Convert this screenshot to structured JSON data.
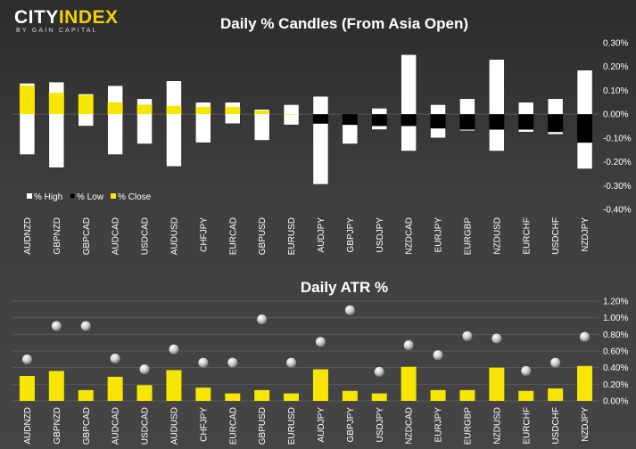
{
  "logo": {
    "main_prefix": "CITY",
    "main_accent": "INDEX",
    "sub": "BY GAIN CAPITAL"
  },
  "colors": {
    "high": "#ffffff",
    "low": "#000000",
    "close": "#f6e600",
    "atr_bar": "#f6e600",
    "gridline": "#5a5a5a",
    "text": "#ffffff"
  },
  "chart_data": [
    {
      "type": "bar",
      "title": "Daily % Candles (From Asia Open)",
      "categories": [
        "AUDNZD",
        "GBPNZD",
        "GBPCAD",
        "AUDCAD",
        "USDCAD",
        "AUDUSD",
        "CHFJPY",
        "EURCAD",
        "GBPUSD",
        "EURUSD",
        "AUDJPY",
        "GBPJPY",
        "USDJPY",
        "NZDCAD",
        "EURJPY",
        "EURGBP",
        "NZDUSD",
        "EURCHF",
        "USDCHF",
        "NZDJPY"
      ],
      "series": [
        {
          "name": "% High",
          "values": [
            0.13,
            0.135,
            0.085,
            0.12,
            0.065,
            0.14,
            0.05,
            0.05,
            0.02,
            0.04,
            0.075,
            0.0,
            0.025,
            0.25,
            0.04,
            0.065,
            0.23,
            0.05,
            0.065,
            0.185
          ]
        },
        {
          "name": "% Low",
          "values": [
            -0.17,
            -0.225,
            -0.05,
            -0.17,
            -0.125,
            -0.22,
            -0.12,
            -0.04,
            -0.11,
            -0.045,
            -0.295,
            -0.125,
            -0.065,
            -0.155,
            -0.1,
            -0.07,
            -0.155,
            -0.075,
            -0.085,
            -0.23
          ]
        },
        {
          "name": "% Close",
          "values": [
            0.12,
            0.09,
            0.08,
            0.05,
            0.04,
            0.035,
            0.03,
            0.03,
            0.015,
            0.0,
            -0.04,
            -0.045,
            -0.05,
            -0.05,
            -0.06,
            -0.065,
            -0.065,
            -0.065,
            -0.075,
            -0.12
          ]
        }
      ],
      "ylim": [
        -0.4,
        0.3
      ],
      "yticks": [
        "0.30%",
        "0.20%",
        "0.10%",
        "0.00%",
        "-0.10%",
        "-0.20%",
        "-0.30%",
        "-0.40%"
      ],
      "ytick_values": [
        0.3,
        0.2,
        0.1,
        0.0,
        -0.1,
        -0.2,
        -0.3,
        -0.4
      ],
      "legend": "bottom-left"
    },
    {
      "type": "bar",
      "title": "Daily ATR %",
      "categories": [
        "AUDNZD",
        "GBPNZD",
        "GBPCAD",
        "AUDCAD",
        "USDCAD",
        "AUDUSD",
        "CHFJPY",
        "EURCAD",
        "GBPUSD",
        "EURUSD",
        "AUDJPY",
        "GBPJPY",
        "USDJPY",
        "NZDCAD",
        "EURJPY",
        "EURGBP",
        "NZDUSD",
        "EURCHF",
        "USDCHF",
        "NZDJPY"
      ],
      "series": [
        {
          "values": [
            0.3,
            0.36,
            0.13,
            0.29,
            0.19,
            0.37,
            0.16,
            0.09,
            0.13,
            0.09,
            0.38,
            0.12,
            0.09,
            0.41,
            0.13,
            0.13,
            0.4,
            0.12,
            0.15,
            0.42
          ]
        },
        {
          "values": [
            0.5,
            0.9,
            0.9,
            0.51,
            0.38,
            0.62,
            0.46,
            0.46,
            0.98,
            0.46,
            0.71,
            1.09,
            0.35,
            0.67,
            0.55,
            0.78,
            0.75,
            0.36,
            0.46,
            0.77
          ]
        }
      ],
      "ylim": [
        0.0,
        1.2
      ],
      "yticks": [
        "1.20%",
        "1.00%",
        "0.80%",
        "0.60%",
        "0.40%",
        "0.20%",
        "0.00%"
      ],
      "ytick_values": [
        1.2,
        1.0,
        0.8,
        0.6,
        0.4,
        0.2,
        0.0
      ]
    }
  ]
}
